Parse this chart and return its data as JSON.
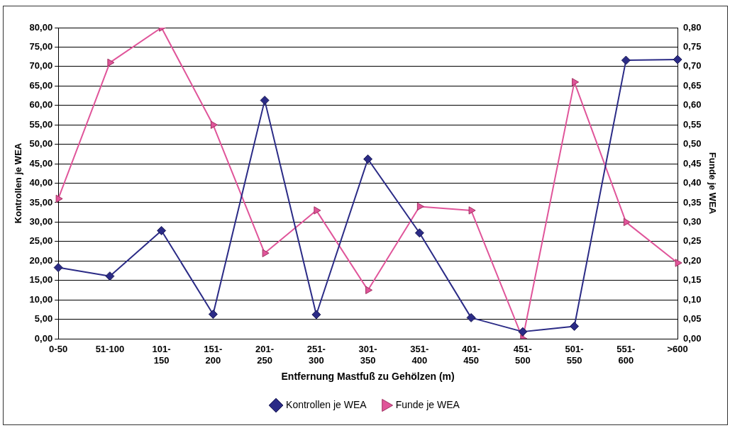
{
  "chart_data": {
    "type": "line",
    "xlabel": "Entfernung Mastfuß zu Gehölzen (m)",
    "ylabel": "Kontrollen je WEA",
    "y2label": "Funde je WEA",
    "categories": [
      "0-50",
      "51-100",
      "101-150",
      "151-200",
      "201-250",
      "251-300",
      "301-350",
      "351-400",
      "401-450",
      "451-500",
      "501-550",
      "551-600",
      ">600"
    ],
    "series": [
      {
        "name": "Kontrollen je WEA",
        "color": "#2b2b86",
        "marker": "diamond",
        "values": [
          18.3,
          16.1,
          27.8,
          6.3,
          61.3,
          6.2,
          46.2,
          27.2,
          5.4,
          1.8,
          3.2,
          71.6,
          71.8
        ]
      },
      {
        "name": "Funde je WEA",
        "color": "#e0559a",
        "marker": "triangle",
        "axis": "y2",
        "values": [
          0.36,
          0.71,
          0.8,
          0.55,
          0.22,
          0.33,
          0.125,
          0.34,
          0.33,
          0.0,
          0.66,
          0.3,
          0.195
        ]
      }
    ],
    "ylim": [
      0,
      80
    ],
    "yticks": [
      {
        "value": 0,
        "label": "0,00"
      },
      {
        "value": 5,
        "label": "5,00"
      },
      {
        "value": 10,
        "label": "10,00"
      },
      {
        "value": 15,
        "label": "15,00"
      },
      {
        "value": 20,
        "label": "20,00"
      },
      {
        "value": 25,
        "label": "25,00"
      },
      {
        "value": 30,
        "label": "30,00"
      },
      {
        "value": 35,
        "label": "35,00"
      },
      {
        "value": 40,
        "label": "40,00"
      },
      {
        "value": 45,
        "label": "45,00"
      },
      {
        "value": 50,
        "label": "50,00"
      },
      {
        "value": 55,
        "label": "55,00"
      },
      {
        "value": 60,
        "label": "60,00"
      },
      {
        "value": 65,
        "label": "65,00"
      },
      {
        "value": 70,
        "label": "70,00"
      },
      {
        "value": 75,
        "label": "75,00"
      },
      {
        "value": 80,
        "label": "80,00"
      }
    ],
    "y2lim": [
      0,
      0.8
    ],
    "y2ticks": [
      {
        "value": 0,
        "label": "0,00"
      },
      {
        "value": 0.05,
        "label": "0,05"
      },
      {
        "value": 0.1,
        "label": "0,10"
      },
      {
        "value": 0.15,
        "label": "0,15"
      },
      {
        "value": 0.2,
        "label": "0,20"
      },
      {
        "value": 0.25,
        "label": "0,25"
      },
      {
        "value": 0.3,
        "label": "0,30"
      },
      {
        "value": 0.35,
        "label": "0,35"
      },
      {
        "value": 0.4,
        "label": "0,40"
      },
      {
        "value": 0.45,
        "label": "0,45"
      },
      {
        "value": 0.5,
        "label": "0,50"
      },
      {
        "value": 0.55,
        "label": "0,55"
      },
      {
        "value": 0.6,
        "label": "0,60"
      },
      {
        "value": 0.65,
        "label": "0,65"
      },
      {
        "value": 0.7,
        "label": "0,70"
      },
      {
        "value": 0.75,
        "label": "0,75"
      },
      {
        "value": 0.8,
        "label": "0,80"
      }
    ],
    "grid": "y",
    "legend": "bottom"
  }
}
